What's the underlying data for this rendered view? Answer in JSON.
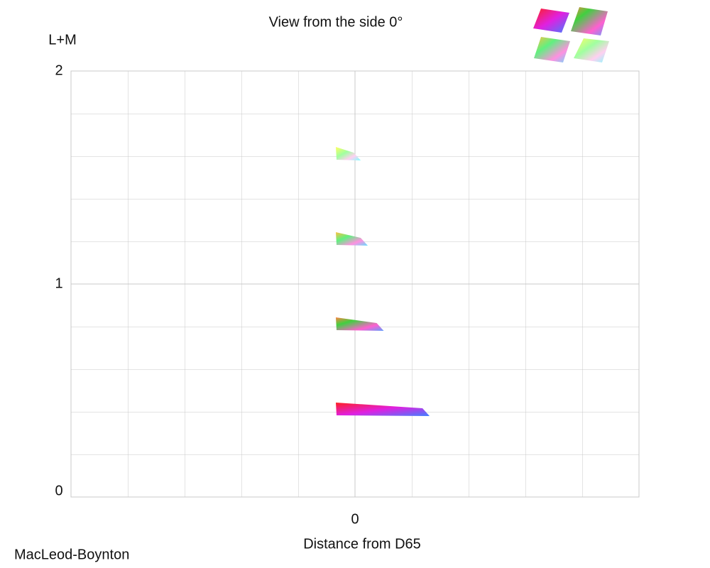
{
  "chart_data": {
    "type": "slices",
    "title": "View from the side 0°",
    "y_label": "L+M",
    "x_label": "Distance from D65",
    "footer": "MacLeod-Boynton",
    "values": [
      0.4,
      0.8,
      1.2,
      1.6
    ],
    "extents": [
      0.35,
      0.135,
      0.06,
      0.027
    ],
    "ylim": [
      0,
      2
    ],
    "yticks": [
      0,
      1,
      2
    ],
    "xlim": [
      -1.333,
      1.333
    ],
    "xticks": [
      0
    ],
    "grid": true
  }
}
